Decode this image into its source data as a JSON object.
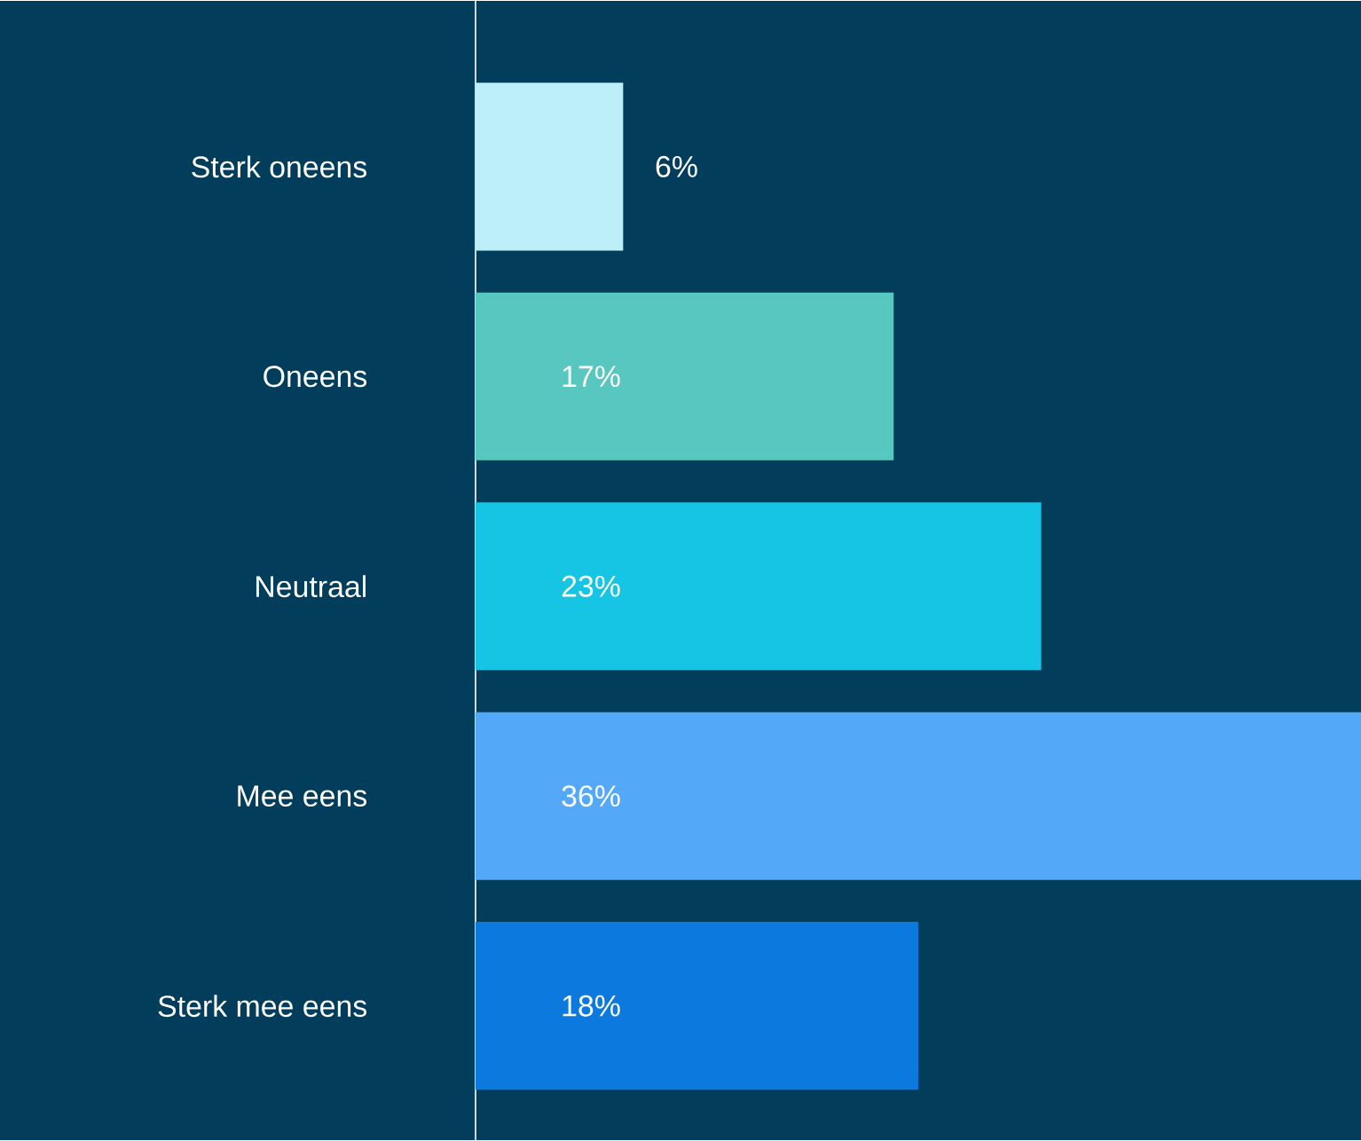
{
  "chart_data": {
    "type": "bar",
    "orientation": "horizontal",
    "categories": [
      "Sterk oneens",
      "Oneens",
      "Neutraal",
      "Mee eens",
      "Sterk mee eens"
    ],
    "values": [
      6,
      17,
      23,
      36,
      18
    ],
    "colors": [
      "#bdeff8",
      "#58c7bf",
      "#16c5e3",
      "#53a9f7",
      "#0c79df"
    ],
    "value_labels": [
      "6%",
      "17%",
      "23%",
      "36%",
      "18%"
    ]
  }
}
